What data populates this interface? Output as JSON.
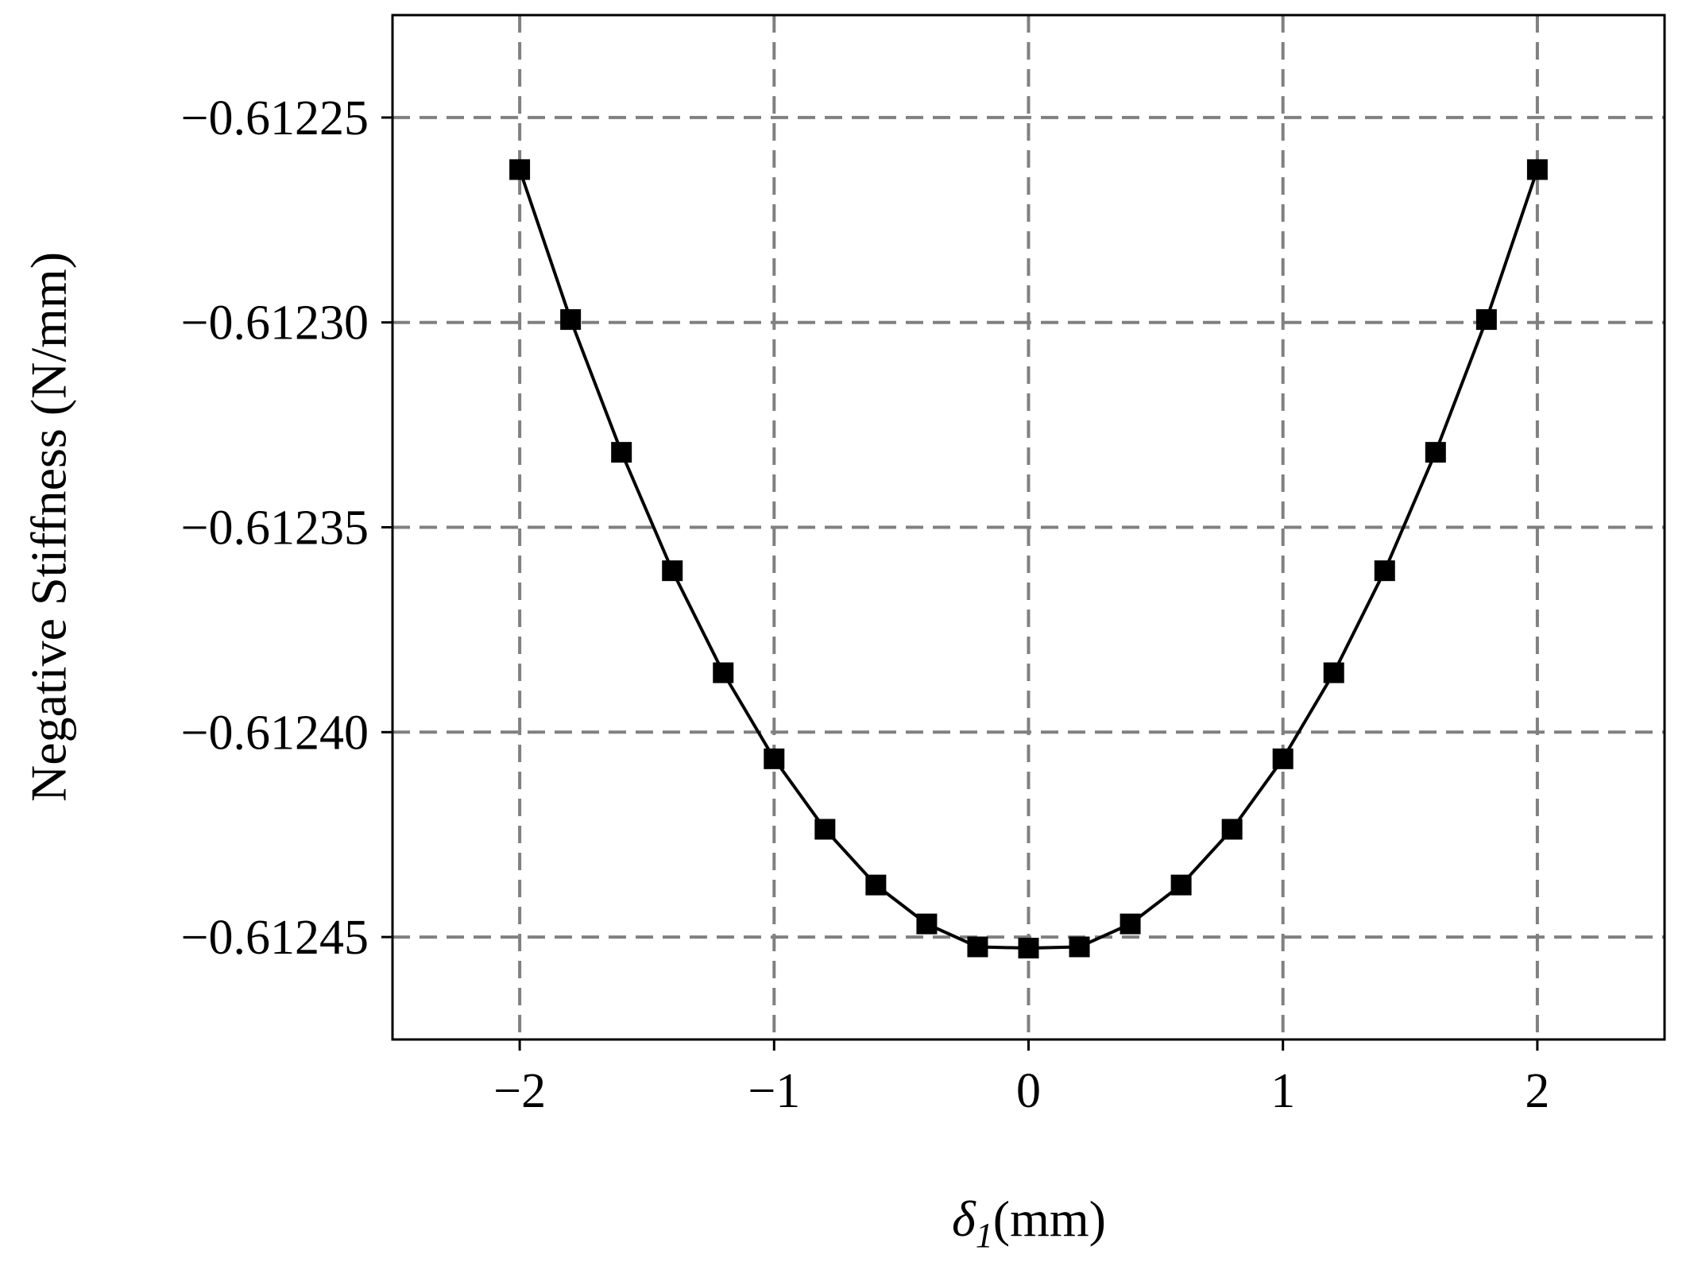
{
  "chart_data": {
    "type": "line",
    "xlabel": {
      "symbol": "δ",
      "subscript": "1",
      "unit": "(mm)"
    },
    "ylabel": "Negative Stiffness (N/mm)",
    "x": [
      -2,
      -1.8,
      -1.6,
      -1.4,
      -1.2,
      -1,
      -0.8,
      -0.6,
      -0.4,
      -0.2,
      0,
      0.2,
      0.4,
      0.6,
      0.8,
      1,
      1.2,
      1.4,
      1.6,
      1.8,
      2
    ],
    "series": [
      {
        "color": "#000000",
        "values": [
          -0.6122627,
          -0.6122993,
          -0.6123317,
          -0.6123606,
          -0.6123855,
          -0.6124065,
          -0.6124237,
          -0.6124373,
          -0.6124468,
          -0.6124524,
          -0.6124527,
          -0.6124524,
          -0.6124468,
          -0.6124373,
          -0.6124237,
          -0.6124065,
          -0.6123855,
          -0.6123606,
          -0.6123317,
          -0.6122993,
          -0.6122627
        ]
      }
    ],
    "xlim": [
      -2.5,
      2.5
    ],
    "ylim": [
      -0.612475,
      -0.612225
    ],
    "xticks": [
      {
        "value": -2,
        "label": "−2"
      },
      {
        "value": -1,
        "label": "−1"
      },
      0,
      1,
      2
    ],
    "yticks": [
      {
        "value": -0.61245,
        "label": "−0.61245"
      },
      {
        "value": -0.6124,
        "label": "−0.61240"
      },
      {
        "value": -0.61235,
        "label": "−0.61235"
      },
      {
        "value": -0.6123,
        "label": "−0.61230"
      },
      {
        "value": -0.61225,
        "label": "−0.61225"
      }
    ],
    "grid": true,
    "marker": "square"
  }
}
